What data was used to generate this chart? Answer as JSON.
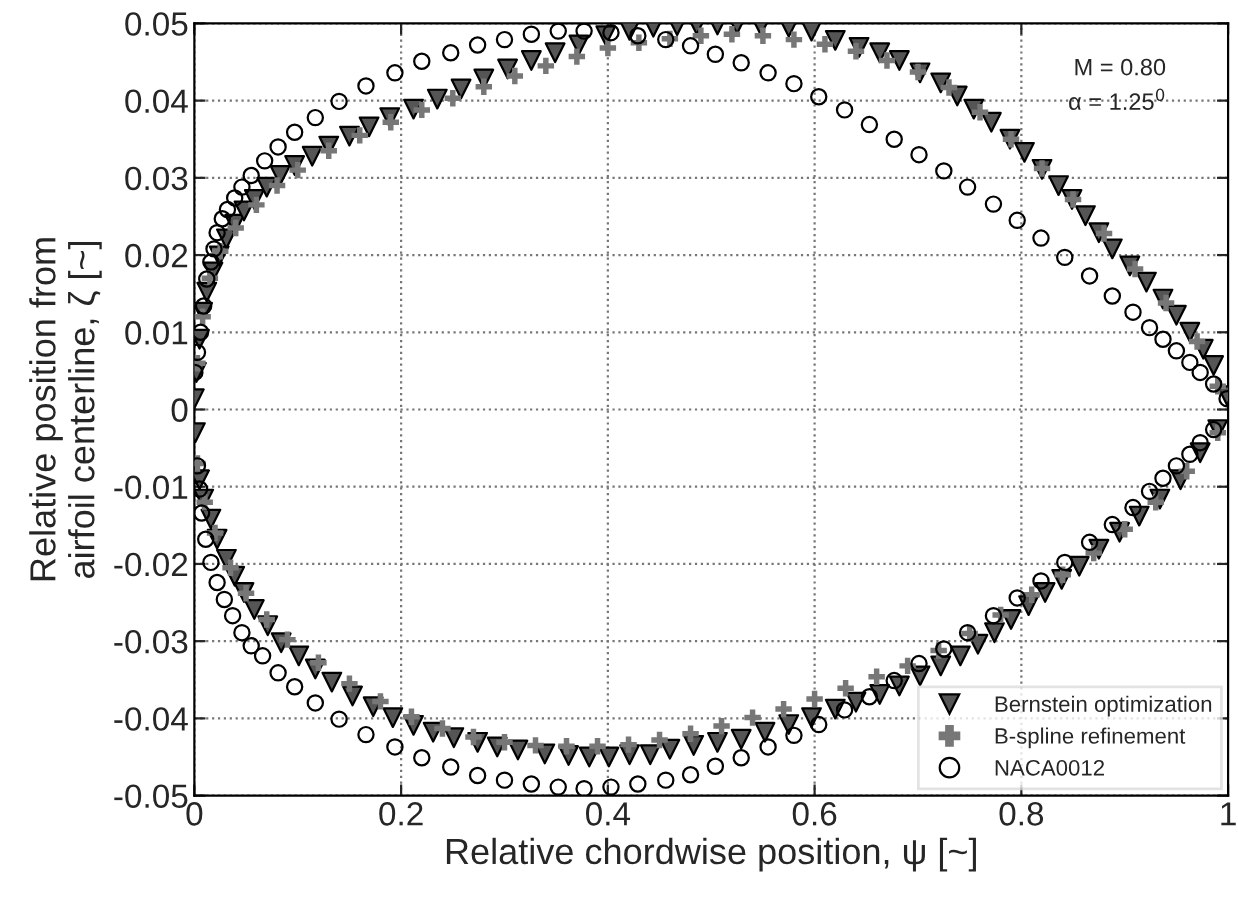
{
  "chart_data": {
    "type": "scatter",
    "xlabel": "Relative chordwise position, ψ [~]",
    "ylabel": "Relative position from\nairfoil centerline, ζ [~]",
    "xlim": [
      0,
      1
    ],
    "xticks": [
      0,
      0.2,
      0.4,
      0.6,
      0.8,
      1
    ],
    "ylim": [
      -0.05,
      0.05
    ],
    "yticks": [
      -0.05,
      -0.04,
      -0.03,
      -0.02,
      -0.01,
      0,
      0.01,
      0.02,
      0.03,
      0.04,
      0.05
    ],
    "grid": true,
    "legend": "bottom right",
    "annotations": [
      "M = 0.80",
      "α = 1.25$^{0}$"
    ],
    "series": [
      {
        "name": "Bernstein optimization",
        "color": "#555555",
        "marker": "triangle",
        "x": [
          0,
          0.002,
          0.005,
          0.008,
          0.012,
          0.018,
          0.024,
          0.031,
          0.039,
          0.048,
          0.058,
          0.07,
          0.083,
          0.097,
          0.114,
          0.13,
          0.15,
          0.169,
          0.189,
          0.212,
          0.235,
          0.258,
          0.28,
          0.303,
          0.326,
          0.349,
          0.372,
          0.398,
          0.421,
          0.444,
          0.467,
          0.486,
          0.506,
          0.525,
          0.548,
          0.575,
          0.597,
          0.62,
          0.643,
          0.663,
          0.682,
          0.702,
          0.722,
          0.738,
          0.754,
          0.771,
          0.789,
          0.803,
          0.82,
          0.836,
          0.849,
          0.862,
          0.875,
          0.888,
          0.905,
          0.921,
          0.937,
          0.95,
          0.963,
          0.976,
          0.986,
          0.999,
          0.001,
          0.005,
          0.009,
          0.016,
          0.022,
          0.031,
          0.039,
          0.048,
          0.058,
          0.071,
          0.084,
          0.101,
          0.117,
          0.133,
          0.153,
          0.173,
          0.192,
          0.212,
          0.231,
          0.251,
          0.274,
          0.293,
          0.313,
          0.339,
          0.362,
          0.382,
          0.401,
          0.421,
          0.441,
          0.46,
          0.483,
          0.506,
          0.529,
          0.552,
          0.575,
          0.597,
          0.62,
          0.64,
          0.663,
          0.682,
          0.702,
          0.722,
          0.741,
          0.758,
          0.774,
          0.79,
          0.807,
          0.823,
          0.839,
          0.856,
          0.875,
          0.895,
          0.914,
          0.934,
          0.954,
          0.973,
          0.99
        ],
        "values": [
          0.0014,
          0.0048,
          0.0091,
          0.0126,
          0.0152,
          0.0178,
          0.0199,
          0.0221,
          0.024,
          0.0257,
          0.0272,
          0.0288,
          0.0303,
          0.0316,
          0.0328,
          0.0341,
          0.0354,
          0.0366,
          0.0378,
          0.0389,
          0.0402,
          0.0415,
          0.0428,
          0.0441,
          0.0452,
          0.0462,
          0.0472,
          0.0484,
          0.0491,
          0.0495,
          0.0497,
          0.0498,
          0.0498,
          0.0499,
          0.0497,
          0.0495,
          0.049,
          0.0478,
          0.0469,
          0.0462,
          0.0452,
          0.0436,
          0.0423,
          0.0406,
          0.0389,
          0.0372,
          0.035,
          0.0333,
          0.0311,
          0.029,
          0.0272,
          0.0251,
          0.0229,
          0.0208,
          0.0186,
          0.0165,
          0.0143,
          0.0122,
          0.01,
          0.0078,
          0.0057,
          0.0018,
          -0.003,
          -0.0091,
          -0.0116,
          -0.0142,
          -0.0168,
          -0.0194,
          -0.0216,
          -0.0237,
          -0.0259,
          -0.028,
          -0.0302,
          -0.0319,
          -0.0336,
          -0.0353,
          -0.0371,
          -0.0385,
          -0.0399,
          -0.0409,
          -0.0418,
          -0.0425,
          -0.0431,
          -0.0437,
          -0.0441,
          -0.0446,
          -0.0448,
          -0.045,
          -0.045,
          -0.0447,
          -0.0447,
          -0.044,
          -0.0435,
          -0.0431,
          -0.0427,
          -0.0418,
          -0.0408,
          -0.0399,
          -0.0388,
          -0.0379,
          -0.0369,
          -0.0358,
          -0.0345,
          -0.0332,
          -0.0319,
          -0.0304,
          -0.0289,
          -0.0272,
          -0.0254,
          -0.0237,
          -0.022,
          -0.0203,
          -0.0181,
          -0.0159,
          -0.0138,
          -0.0116,
          -0.0091,
          -0.0056,
          -0.0026
        ]
      },
      {
        "name": "B-spline refinement",
        "color": "#777777",
        "marker": "plus",
        "x": [
          0.003,
          0.008,
          0.015,
          0.025,
          0.04,
          0.06,
          0.08,
          0.1,
          0.13,
          0.16,
          0.19,
          0.22,
          0.25,
          0.28,
          0.31,
          0.34,
          0.37,
          0.4,
          0.43,
          0.46,
          0.49,
          0.52,
          0.55,
          0.58,
          0.61,
          0.64,
          0.67,
          0.7,
          0.73,
          0.76,
          0.79,
          0.82,
          0.85,
          0.88,
          0.91,
          0.94,
          0.97,
          0.99,
          0.003,
          0.01,
          0.02,
          0.035,
          0.05,
          0.07,
          0.09,
          0.12,
          0.15,
          0.18,
          0.21,
          0.24,
          0.27,
          0.3,
          0.33,
          0.36,
          0.39,
          0.42,
          0.45,
          0.48,
          0.51,
          0.54,
          0.57,
          0.6,
          0.63,
          0.66,
          0.69,
          0.72,
          0.75,
          0.78,
          0.81,
          0.84,
          0.87,
          0.9,
          0.93,
          0.96,
          0.99
        ],
        "values": [
          0.006,
          0.012,
          0.017,
          0.0205,
          0.0235,
          0.0265,
          0.029,
          0.031,
          0.0335,
          0.0355,
          0.0372,
          0.0388,
          0.0403,
          0.0418,
          0.0432,
          0.0445,
          0.0457,
          0.0468,
          0.0475,
          0.048,
          0.0484,
          0.0486,
          0.0484,
          0.0479,
          0.0473,
          0.0464,
          0.0452,
          0.0437,
          0.0417,
          0.0385,
          0.035,
          0.0312,
          0.0272,
          0.0228,
          0.0182,
          0.0138,
          0.0088,
          0.003,
          -0.007,
          -0.012,
          -0.016,
          -0.0205,
          -0.0238,
          -0.0272,
          -0.0298,
          -0.0328,
          -0.0355,
          -0.0378,
          -0.0398,
          -0.0413,
          -0.0424,
          -0.0431,
          -0.0435,
          -0.0436,
          -0.0436,
          -0.0434,
          -0.0428,
          -0.042,
          -0.041,
          -0.0399,
          -0.0388,
          -0.0375,
          -0.0361,
          -0.0346,
          -0.0332,
          -0.0312,
          -0.029,
          -0.0266,
          -0.024,
          -0.0214,
          -0.0186,
          -0.0155,
          -0.012,
          -0.008,
          -0.003
        ]
      },
      {
        "name": "NACA0012",
        "color": "#000000",
        "marker": "circle",
        "x": [
          0.0005,
          0.003,
          0.006,
          0.009,
          0.012,
          0.016,
          0.019,
          0.022,
          0.027,
          0.032,
          0.039,
          0.046,
          0.055,
          0.068,
          0.081,
          0.097,
          0.117,
          0.14,
          0.166,
          0.194,
          0.22,
          0.248,
          0.274,
          0.3,
          0.326,
          0.352,
          0.377,
          0.403,
          0.429,
          0.456,
          0.48,
          0.504,
          0.529,
          0.555,
          0.58,
          0.604,
          0.629,
          0.653,
          0.677,
          0.701,
          0.725,
          0.748,
          0.773,
          0.796,
          0.819,
          0.842,
          0.866,
          0.888,
          0.908,
          0.924,
          0.937,
          0.95,
          0.963,
          0.973,
          0.986,
          0.999,
          0.003,
          0.005,
          0.007,
          0.011,
          0.016,
          0.022,
          0.029,
          0.037,
          0.046,
          0.055,
          0.066,
          0.081,
          0.097,
          0.117,
          0.14,
          0.166,
          0.194,
          0.22,
          0.248,
          0.274,
          0.3,
          0.326,
          0.352,
          0.377,
          0.403,
          0.429,
          0.456,
          0.48,
          0.504,
          0.529,
          0.555,
          0.58,
          0.604,
          0.629,
          0.653,
          0.677,
          0.701,
          0.725,
          0.748,
          0.773,
          0.796,
          0.819,
          0.842,
          0.866,
          0.888,
          0.908,
          0.924,
          0.937,
          0.95,
          0.963,
          0.973,
          0.986
        ],
        "values": [
          0.0048,
          0.0074,
          0.01,
          0.0134,
          0.0169,
          0.0191,
          0.0208,
          0.0229,
          0.0247,
          0.0259,
          0.0274,
          0.0288,
          0.0303,
          0.0322,
          0.034,
          0.0359,
          0.0378,
          0.0399,
          0.0419,
          0.0436,
          0.0451,
          0.0462,
          0.0472,
          0.0479,
          0.0486,
          0.049,
          0.049,
          0.0488,
          0.0484,
          0.0479,
          0.0471,
          0.046,
          0.0449,
          0.0436,
          0.0422,
          0.0405,
          0.0388,
          0.0369,
          0.035,
          0.033,
          0.0309,
          0.0288,
          0.0266,
          0.0245,
          0.0222,
          0.0197,
          0.0173,
          0.0147,
          0.0126,
          0.0106,
          0.0091,
          0.0076,
          0.0061,
          0.0048,
          0.0033,
          0.0014,
          -0.0073,
          -0.0103,
          -0.0134,
          -0.0168,
          -0.0198,
          -0.0224,
          -0.0246,
          -0.0267,
          -0.0289,
          -0.0306,
          -0.0319,
          -0.0341,
          -0.0359,
          -0.038,
          -0.0401,
          -0.0421,
          -0.0437,
          -0.0451,
          -0.0463,
          -0.0474,
          -0.048,
          -0.0485,
          -0.0489,
          -0.0491,
          -0.0489,
          -0.0485,
          -0.048,
          -0.0473,
          -0.0462,
          -0.0451,
          -0.0437,
          -0.0422,
          -0.0408,
          -0.0389,
          -0.0372,
          -0.0351,
          -0.0329,
          -0.031,
          -0.0289,
          -0.0267,
          -0.0244,
          -0.0222,
          -0.0198,
          -0.0172,
          -0.0149,
          -0.0127,
          -0.0106,
          -0.0089,
          -0.0073,
          -0.0058,
          -0.0043,
          -0.0026
        ]
      }
    ]
  }
}
